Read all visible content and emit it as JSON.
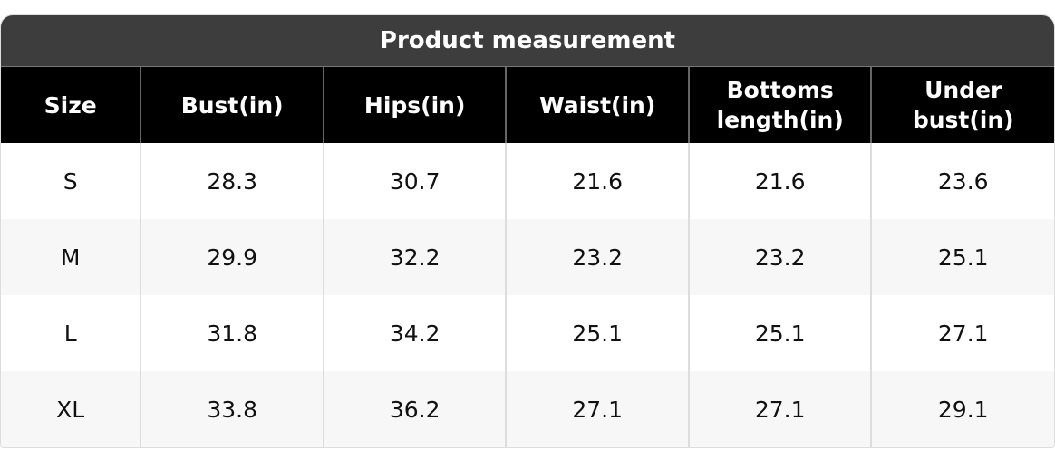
{
  "title": "Product measurement",
  "headers": [
    "Size",
    "Bust(in)",
    "Hips(in)",
    "Waist(in)",
    "Bottoms length(in)",
    "Under bust(in)"
  ],
  "rows": [
    [
      "S",
      "28.3",
      "30.7",
      "21.6",
      "21.6",
      "23.6"
    ],
    [
      "M",
      "29.9",
      "32.2",
      "23.2",
      "23.2",
      "25.1"
    ],
    [
      "L",
      "31.8",
      "34.2",
      "25.1",
      "25.1",
      "27.1"
    ],
    [
      "XL",
      "33.8",
      "36.2",
      "27.1",
      "27.1",
      "29.1"
    ]
  ],
  "colors": {
    "title_bg": "#3d3d3d",
    "header_bg": "#000000",
    "alt_row_bg": "#f7f7f7"
  }
}
